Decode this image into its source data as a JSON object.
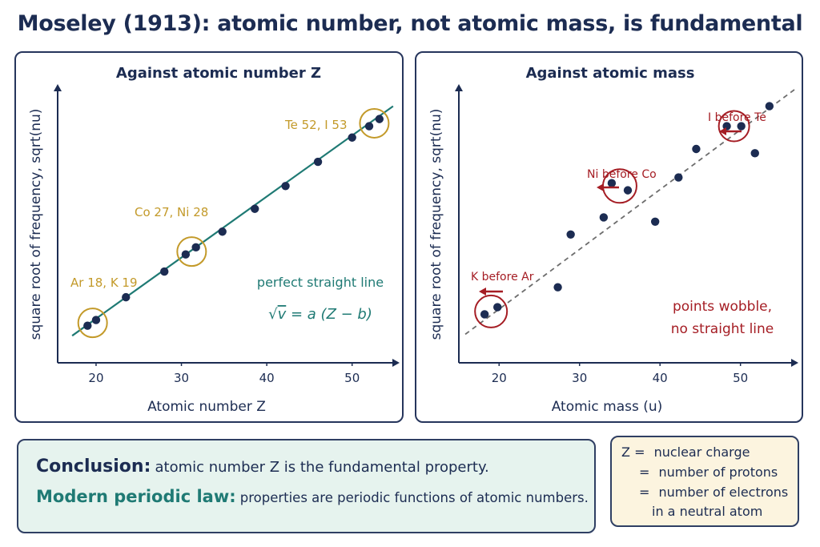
{
  "title": "Moseley (1913): atomic number, not atomic mass, is fundamental",
  "chart_data": [
    {
      "type": "scatter",
      "title": "Against atomic number Z",
      "xlabel": "Atomic number Z",
      "ylabel": "square root of frequency, sqrt(nu)",
      "xlim": [
        15.5,
        55
      ],
      "ylim": [
        0,
        10
      ],
      "xticks": [
        20,
        30,
        40,
        50
      ],
      "grid": false,
      "points": [
        {
          "x": 19,
          "y": 1.3
        },
        {
          "x": 20,
          "y": 1.5
        },
        {
          "x": 23.5,
          "y": 2.3
        },
        {
          "x": 28,
          "y": 3.2
        },
        {
          "x": 30.5,
          "y": 3.8
        },
        {
          "x": 31.7,
          "y": 4.05
        },
        {
          "x": 34.8,
          "y": 4.6
        },
        {
          "x": 38.6,
          "y": 5.4
        },
        {
          "x": 42.2,
          "y": 6.2
        },
        {
          "x": 46,
          "y": 7.05
        },
        {
          "x": 50,
          "y": 7.9
        },
        {
          "x": 52,
          "y": 8.3
        },
        {
          "x": 53.2,
          "y": 8.55
        }
      ],
      "fit_line": {
        "x": [
          17.2,
          54.8
        ],
        "y": [
          0.95,
          9.0
        ]
      },
      "annotations": [
        {
          "text": "Ar 18, K 19",
          "x": 19.6,
          "y": 1.4
        },
        {
          "text": "Co 27, Ni 28",
          "x": 31.2,
          "y": 3.9
        },
        {
          "text": "Te 52, I 53",
          "x": 52.6,
          "y": 8.4
        }
      ],
      "notes": [
        "perfect straight line"
      ],
      "formula": {
        "sqrt": "√",
        "nu": "v",
        "eq": "= a (Z − b)"
      }
    },
    {
      "type": "scatter",
      "title": "Against atomic mass",
      "xlabel": "Atomic mass (u)",
      "ylabel": "square root of frequency, sqrt(nu)",
      "xlim": [
        15,
        57
      ],
      "ylim": [
        0,
        10
      ],
      "xticks": [
        20,
        30,
        40,
        50
      ],
      "grid": false,
      "points": [
        {
          "x": 18.2,
          "y": 1.7
        },
        {
          "x": 19.8,
          "y": 1.95
        },
        {
          "x": 27.3,
          "y": 2.65
        },
        {
          "x": 28.9,
          "y": 4.5
        },
        {
          "x": 33,
          "y": 5.1
        },
        {
          "x": 34,
          "y": 6.3
        },
        {
          "x": 36,
          "y": 6.05
        },
        {
          "x": 39.4,
          "y": 4.95
        },
        {
          "x": 42.3,
          "y": 6.5
        },
        {
          "x": 44.5,
          "y": 7.5
        },
        {
          "x": 48.3,
          "y": 8.3
        },
        {
          "x": 50.1,
          "y": 8.3
        },
        {
          "x": 51.8,
          "y": 7.35
        },
        {
          "x": 53.6,
          "y": 9.0
        }
      ],
      "trend_line": {
        "x": [
          15.8,
          56.8
        ],
        "y": [
          1.0,
          9.6
        ]
      },
      "annotations": [
        {
          "text": "K before Ar",
          "x": 19.0,
          "y": 1.8
        },
        {
          "text": "Ni before Co",
          "x": 35.0,
          "y": 6.2
        },
        {
          "text": "I before Te",
          "x": 49.2,
          "y": 8.3
        }
      ],
      "notes": [
        "points wobble,",
        "no straight line"
      ]
    }
  ],
  "conclusion": {
    "line1_head": "Conclusion:",
    "line1_text": "atomic number Z is the fundamental property.",
    "line2_head": "Modern periodic law:",
    "line2_text": "properties are periodic functions of atomic numbers."
  },
  "z_box": {
    "z": "Z",
    "eq": "=",
    "line1": "nuclear charge",
    "line2": "number of protons",
    "line3": "number of electrons",
    "line4": "in a neutral atom"
  },
  "colors": {
    "navy": "#1c2c52",
    "teal": "#1f7a74",
    "gold": "#c39a2a",
    "red": "#a51d24",
    "gray_dash": "#6d6d6d"
  }
}
